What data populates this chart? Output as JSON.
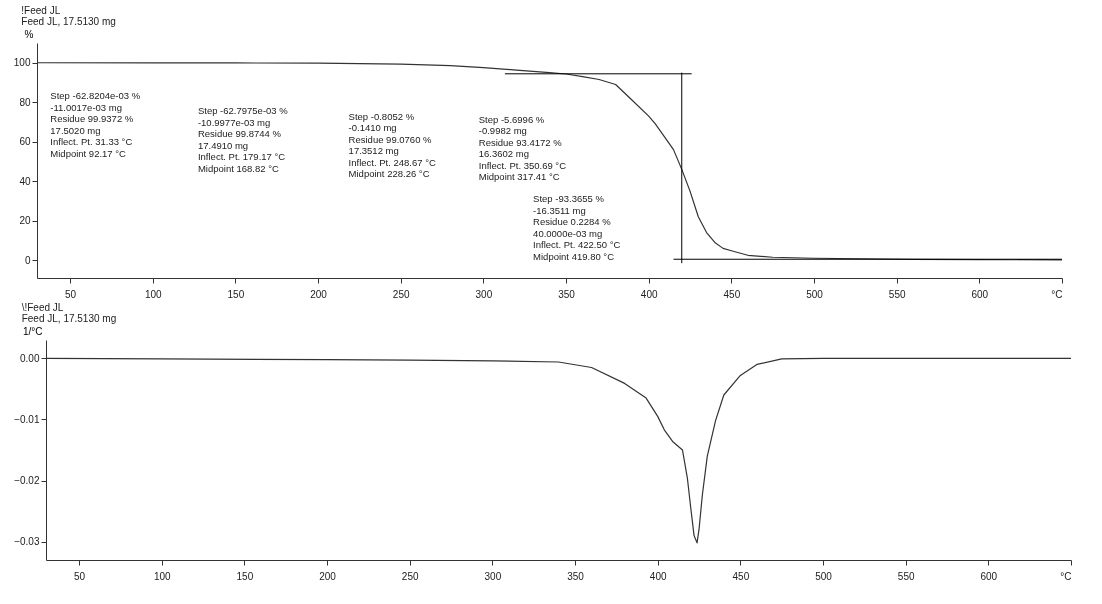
{
  "chart_data": [
    {
      "type": "line",
      "title": "!Feed JL",
      "subtitle": "Feed JL, 17.5130 mg",
      "ylabel": "%",
      "xlim": [
        30,
        650
      ],
      "xticks": [
        50,
        100,
        150,
        200,
        250,
        300,
        350,
        400,
        450,
        500,
        550,
        600,
        {
          "value": 650,
          "label": "°C"
        }
      ],
      "ylim": [
        -9,
        110
      ],
      "yticks": [
        0,
        20,
        40,
        60,
        80,
        100
      ],
      "grid": false,
      "legend": false,
      "marker": "none",
      "line_style": "solid",
      "series": [
        {
          "color": "#333333",
          "x": [
            30,
            100,
            150,
            200,
            250,
            280,
            300,
            320,
            340,
            350,
            360,
            370,
            380,
            390,
            400,
            404,
            410,
            415,
            420,
            425,
            430,
            435,
            440,
            445,
            450,
            460,
            475,
            500,
            560,
            600,
            650
          ],
          "values": [
            100,
            99.9,
            99.9,
            99.8,
            99.3,
            98.5,
            97.5,
            96.3,
            95,
            94.3,
            93,
            91.5,
            89,
            81,
            73,
            69,
            62,
            56,
            46,
            35,
            22,
            14,
            9,
            6,
            4.8,
            2.5,
            1.5,
            1,
            0.4,
            0.3,
            0.2
          ]
        },
        {
          "color": "#000000",
          "x": [
            313,
            426
          ],
          "values": [
            94.4,
            94.4
          ]
        },
        {
          "color": "#000000",
          "x": [
            420,
            420
          ],
          "values": [
            -1.5,
            95
          ]
        },
        {
          "color": "#000000",
          "x": [
            415,
            650
          ],
          "values": [
            0.5,
            0.5
          ]
        }
      ],
      "annotations": [
        "Step  -62.8204e-03 %\n-11.0017e-03 mg\nResidue  99.9372 %\n17.5020 mg\nInflect. Pt.  31.33 °C\nMidpoint  92.17 °C",
        "Step  -62.7975e-03 %\n-10.9977e-03 mg\nResidue  99.8744 %\n17.4910 mg\nInflect. Pt.  179.17 °C\nMidpoint  168.82 °C",
        "Step  -0.8052 %\n-0.1410 mg\nResidue  99.0760 %\n17.3512 mg\nInflect. Pt.  248.67 °C\nMidpoint  228.26 °C",
        "Step  -5.6996 %\n-0.9982 mg\nResidue  93.4172 %\n16.3602 mg\nInflect. Pt.  350.69 °C\nMidpoint  317.41 °C",
        "Step  -93.3655 %\n-16.3511 mg\nResidue  0.2284 %\n40.0000e-03 mg\nInflect. Pt.  422.50 °C\nMidpoint  419.80 °C"
      ]
    },
    {
      "type": "line",
      "title": "\\!Feed JL",
      "subtitle": "Feed JL, 17.5130 mg",
      "ylabel": "1/°C",
      "xlim": [
        30,
        650
      ],
      "xticks": [
        50,
        100,
        150,
        200,
        250,
        300,
        350,
        400,
        450,
        500,
        550,
        600,
        {
          "value": 650,
          "label": "°C"
        }
      ],
      "ylim": [
        -0.033,
        0.003
      ],
      "yticks": [
        {
          "value": 0,
          "label": "0.00"
        },
        -0.01,
        -0.02,
        -0.03
      ],
      "grid": false,
      "legend": false,
      "marker": "none",
      "line_style": "solid",
      "series": [
        {
          "color": "#333333",
          "x": [
            30,
            100,
            200,
            250,
            300,
            340,
            360,
            380,
            393,
            400,
            404,
            409,
            415,
            418,
            420,
            422,
            423.8,
            425,
            427,
            430,
            435,
            440,
            450,
            460,
            475,
            500,
            650
          ],
          "values": [
            0,
            -0.0001,
            -0.0002,
            -0.0003,
            -0.0004,
            -0.0006,
            -0.0015,
            -0.0041,
            -0.0065,
            -0.0095,
            -0.0117,
            -0.0136,
            -0.015,
            -0.0197,
            -0.0245,
            -0.029,
            -0.0302,
            -0.028,
            -0.0224,
            -0.016,
            -0.0102,
            -0.006,
            -0.0028,
            -0.001,
            -0.0001,
            0,
            0
          ]
        }
      ]
    }
  ]
}
